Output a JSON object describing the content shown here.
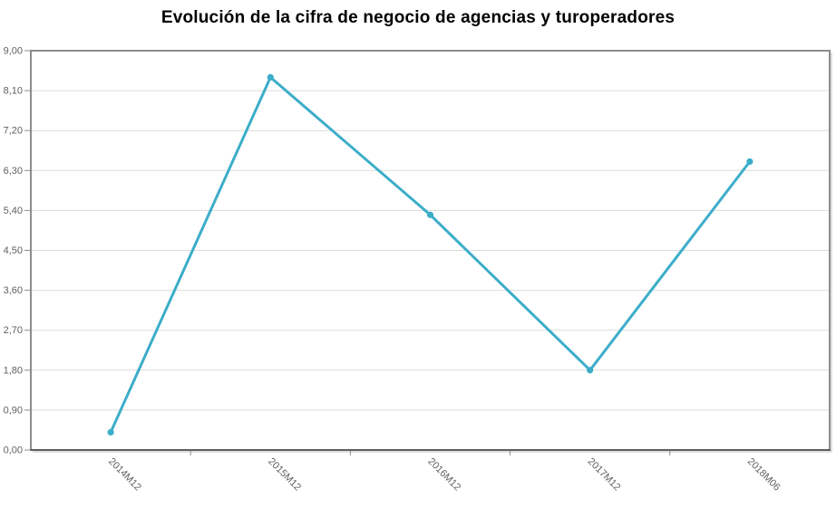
{
  "title": "Evolución de la cifra de negocio de agencias y turoperadores",
  "colors": {
    "line": "#3CADC9",
    "marker": "#3CADC9",
    "grid": "#DCDCDC",
    "border": "#8C8C8C",
    "axis_bottom": "#5E5E5E",
    "shadow": "#D6D6D6",
    "tick_label": "#616161",
    "title_text": "#000000",
    "background": "#FFFFFF"
  },
  "chart_data": {
    "type": "line",
    "title": "Evolución de la cifra de negocio de agencias y turoperadores",
    "categories": [
      "2014M12",
      "2015M12",
      "2016M12",
      "2017M12",
      "2018M06"
    ],
    "values": [
      0.4,
      8.4,
      5.3,
      1.8,
      6.5
    ],
    "xlabel": "",
    "ylabel": "",
    "ylim": [
      0,
      9
    ],
    "ytick_step": 0.9,
    "ytick_labels": [
      "0,00",
      "0,90",
      "1,80",
      "2,70",
      "3,60",
      "4,50",
      "5,40",
      "6,30",
      "7,20",
      "8,10",
      "9,00"
    ],
    "xtick_label_rotation_deg": 45,
    "grid": "horizontal-only",
    "legend": "none",
    "marker": "circle"
  }
}
